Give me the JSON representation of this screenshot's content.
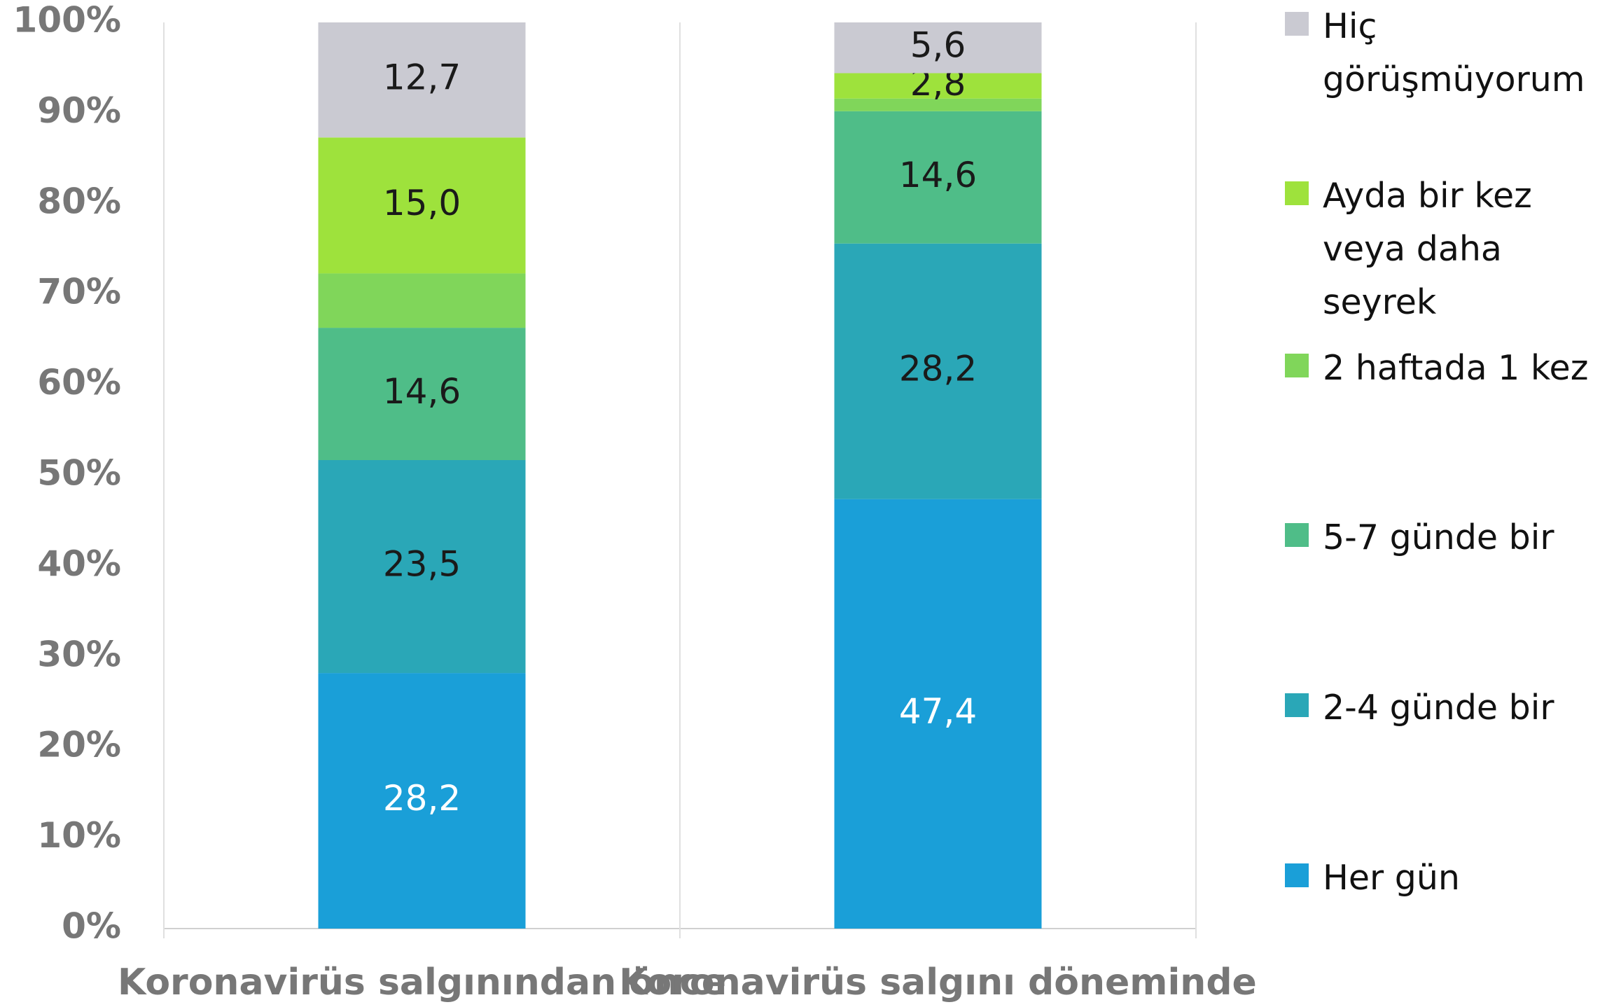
{
  "chart_data": {
    "type": "stacked_bar",
    "categories": [
      "Koronavirüs salgınından önce",
      "Koronavirüs salgını döneminde"
    ],
    "series": [
      {
        "name": "Her gün",
        "color": "#1a9fd8",
        "values": [
          28.2,
          47.4
        ],
        "value_labels": [
          "28,2",
          "47,4"
        ]
      },
      {
        "name": "2-4 günde bir",
        "color": "#2aa7b7",
        "values": [
          23.5,
          28.2
        ],
        "value_labels": [
          "23,5",
          "28,2"
        ]
      },
      {
        "name": "5-7 günde bir",
        "color": "#4fbd88",
        "values": [
          14.6,
          14.6
        ],
        "value_labels": [
          "14,6",
          "14,6"
        ]
      },
      {
        "name": "2 haftada 1 kez",
        "color": "#80d65a",
        "values": [
          6.0,
          1.4
        ]
      },
      {
        "name": "Ayda bir kez veya daha seyrek",
        "color": "#9ee23c",
        "values": [
          15.0,
          2.8
        ],
        "value_labels": [
          "15,0",
          "2,8"
        ]
      },
      {
        "name": "Hiç görüşmüyorum",
        "color": "#cacad2",
        "values": [
          12.7,
          5.6
        ],
        "value_labels": [
          "12,7",
          "5,6"
        ]
      }
    ],
    "ylim": [
      0,
      100
    ],
    "yticks": [
      {
        "value": 0,
        "label": "0%"
      },
      {
        "value": 10,
        "label": "10%"
      },
      {
        "value": 20,
        "label": "20%"
      },
      {
        "value": 30,
        "label": "30%"
      },
      {
        "value": 40,
        "label": "40%"
      },
      {
        "value": 50,
        "label": "50%"
      },
      {
        "value": 60,
        "label": "60%"
      },
      {
        "value": 70,
        "label": "70%"
      },
      {
        "value": 80,
        "label": "80%"
      },
      {
        "value": 90,
        "label": "90%"
      },
      {
        "value": 100,
        "label": "100%"
      }
    ],
    "legend": "right"
  }
}
